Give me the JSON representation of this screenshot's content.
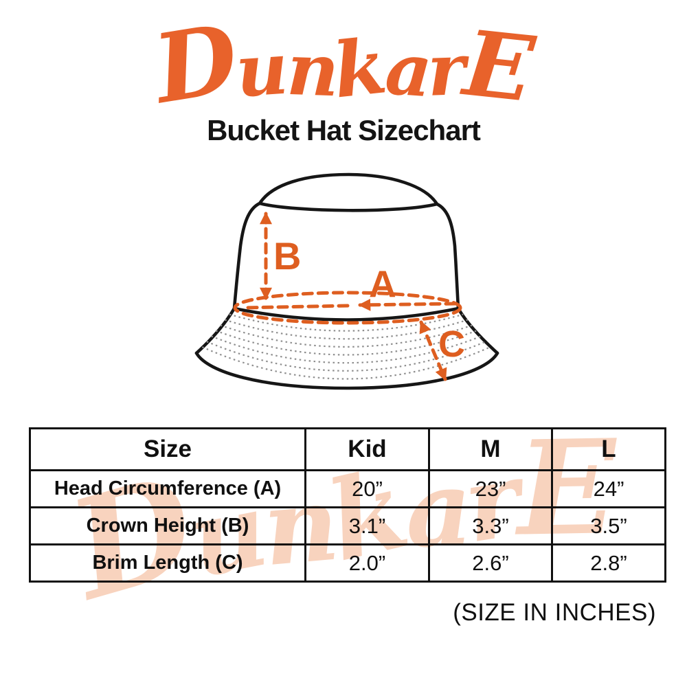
{
  "colors": {
    "logo": "#E8622B",
    "accent": "#DE5E20",
    "watermark": "#F8D3BE",
    "ink": "#161616"
  },
  "brand": {
    "logo_text": "DunkarE"
  },
  "title": "Bucket Hat Sizechart",
  "diagram": {
    "label_a": "A",
    "label_b": "B",
    "label_c": "C"
  },
  "table": {
    "columns": [
      "Size",
      "Kid",
      "M",
      "L"
    ],
    "rows": [
      {
        "label": "Head Circumference (A)",
        "values": [
          "20”",
          "23”",
          "24”"
        ]
      },
      {
        "label": "Crown Height (B)",
        "values": [
          "3.1”",
          "3.3”",
          "3.5”"
        ]
      },
      {
        "label": "Brim Length (C)",
        "values": [
          "2.0”",
          "2.6”",
          "2.8”"
        ]
      }
    ]
  },
  "footnote": "(SIZE IN INCHES)",
  "watermark": {
    "text": "DunkarE"
  }
}
